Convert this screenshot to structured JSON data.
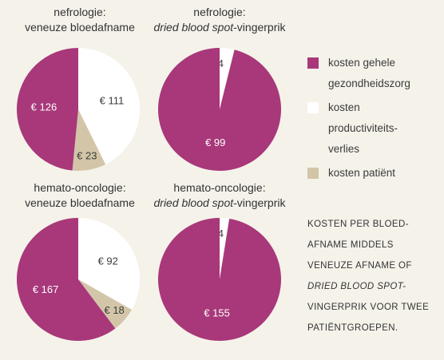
{
  "colors": {
    "background": "#f5f2ea",
    "healthcare": "#a8387a",
    "productivity": "#ffffff",
    "patient": "#d3c6a8",
    "healthcare_label": "#ffffff",
    "light_label": "#3b3b3b"
  },
  "legend": {
    "items": [
      {
        "key": "healthcare",
        "lines": [
          "kosten gehele",
          "gezondheidszorg"
        ]
      },
      {
        "key": "productivity",
        "lines": [
          "kosten",
          "productiviteits-",
          "verlies"
        ]
      },
      {
        "key": "patient",
        "lines": [
          "kosten patiënt"
        ]
      }
    ]
  },
  "caption": {
    "line1": "KOSTEN PER BLOED-",
    "line2": "AFNAME MIDDELS",
    "line3": "VENEUZE AFNAME OF",
    "line4": "DRIED BLOOD SPOT-",
    "line5": "VINGERPRIK VOOR TWEE",
    "line6": "PATIËNTGROEPEN."
  },
  "chart_data": [
    {
      "type": "pie",
      "title_line1": "nefrologie:",
      "title_line2_plain": "veneuze bloedafname",
      "title_line2_italic": "",
      "title_line2_suffix": "",
      "slices": [
        {
          "key": "productivity",
          "label": "kosten productiviteitsverlies",
          "value": 111,
          "text": "€ 111"
        },
        {
          "key": "patient",
          "label": "kosten patiënt",
          "value": 23,
          "text": "€ 23"
        },
        {
          "key": "healthcare",
          "label": "kosten gehele gezondheidszorg",
          "value": 126,
          "text": "€ 126"
        }
      ]
    },
    {
      "type": "pie",
      "title_line1": "nefrologie:",
      "title_line2_plain": "",
      "title_line2_italic": "dried blood spot",
      "title_line2_suffix": "-vingerprik",
      "slices": [
        {
          "key": "productivity",
          "label": "kosten productiviteitsverlies",
          "value": 4,
          "text": "€ 4"
        },
        {
          "key": "patient",
          "label": "kosten patiënt",
          "value": 0,
          "text": ""
        },
        {
          "key": "healthcare",
          "label": "kosten gehele gezondheidszorg",
          "value": 99,
          "text": "€ 99"
        }
      ]
    },
    {
      "type": "pie",
      "title_line1": "hemato-oncologie:",
      "title_line2_plain": "veneuze bloedafname",
      "title_line2_italic": "",
      "title_line2_suffix": "",
      "slices": [
        {
          "key": "productivity",
          "label": "kosten productiviteitsverlies",
          "value": 92,
          "text": "€ 92"
        },
        {
          "key": "patient",
          "label": "kosten patiënt",
          "value": 18,
          "text": "€ 18"
        },
        {
          "key": "healthcare",
          "label": "kosten gehele gezondheidszorg",
          "value": 167,
          "text": "€ 167"
        }
      ]
    },
    {
      "type": "pie",
      "title_line1": "hemato-oncologie:",
      "title_line2_plain": "",
      "title_line2_italic": "dried blood spot",
      "title_line2_suffix": "-vingerprik",
      "slices": [
        {
          "key": "productivity",
          "label": "kosten productiviteitsverlies",
          "value": 4,
          "text": "€ 4"
        },
        {
          "key": "patient",
          "label": "kosten patiënt",
          "value": 0,
          "text": ""
        },
        {
          "key": "healthcare",
          "label": "kosten gehele gezondheidszorg",
          "value": 155,
          "text": "€ 155"
        }
      ]
    }
  ]
}
